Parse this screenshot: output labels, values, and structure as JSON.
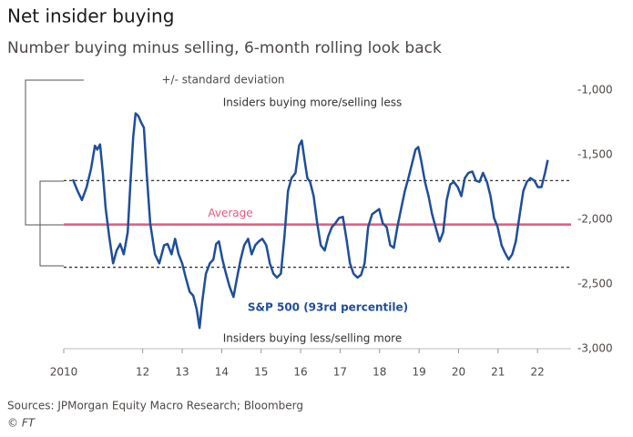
{
  "chart_data": {
    "type": "line",
    "title": "Net insider buying",
    "subtitle": "Number buying minus selling, 6-month rolling look back",
    "source": "Sources: JPMorgan Equity Macro Research; Bloomberg",
    "credit": "© FT",
    "annotations": [
      "+/- standard deviation",
      "Insiders buying more/selling less",
      "S&P 500 (93rd percentile)",
      "Insiders buying less/selling more"
    ],
    "reference_lines": [
      {
        "label": "Average",
        "value": -2040,
        "color": "#e5597e"
      }
    ],
    "band_lines": [
      -1700,
      -2370
    ],
    "xlim": [
      2010,
      2022.85
    ],
    "xticks": [
      2010,
      {
        "value": 2012,
        "label": "12"
      },
      {
        "value": 2013,
        "label": "13"
      },
      {
        "value": 2014,
        "label": "14"
      },
      {
        "value": 2015,
        "label": "15"
      },
      {
        "value": 2016,
        "label": "16"
      },
      {
        "value": 2017,
        "label": "17"
      },
      {
        "value": 2018,
        "label": "18"
      },
      {
        "value": 2019,
        "label": "19"
      },
      {
        "value": 2020,
        "label": "20"
      },
      {
        "value": 2021,
        "label": "21"
      },
      {
        "value": 2022,
        "label": "22"
      }
    ],
    "ylim": [
      -3000,
      -900
    ],
    "yticks": [
      {
        "value": -1000,
        "label": "-1,000"
      },
      {
        "value": -1500,
        "label": "-1,500"
      },
      {
        "value": -2000,
        "label": "-2,000"
      },
      {
        "value": -2500,
        "label": "-2,500"
      },
      {
        "value": -3000,
        "label": "-3,000"
      }
    ],
    "grid": false,
    "x": [
      2010.23,
      2010.35,
      2010.46,
      2010.58,
      2010.69,
      2010.79,
      2010.85,
      2010.92,
      2010.99,
      2011.06,
      2011.15,
      2011.25,
      2011.34,
      2011.43,
      2011.52,
      2011.62,
      2011.69,
      2011.76,
      2011.82,
      2011.89,
      2011.96,
      2012.03,
      2012.1,
      2012.19,
      2012.31,
      2012.42,
      2012.54,
      2012.63,
      2012.73,
      2012.82,
      2012.91,
      2013.0,
      2013.09,
      2013.19,
      2013.28,
      2013.37,
      2013.44,
      2013.51,
      2013.6,
      2013.7,
      2013.79,
      2013.86,
      2013.93,
      2014.02,
      2014.11,
      2014.2,
      2014.3,
      2014.39,
      2014.48,
      2014.57,
      2014.67,
      2014.76,
      2014.85,
      2014.94,
      2015.03,
      2015.13,
      2015.22,
      2015.31,
      2015.4,
      2015.5,
      2015.59,
      2015.68,
      2015.77,
      2015.87,
      2015.96,
      2016.03,
      2016.1,
      2016.17,
      2016.24,
      2016.33,
      2016.42,
      2016.51,
      2016.61,
      2016.7,
      2016.79,
      2016.88,
      2016.97,
      2017.07,
      2017.16,
      2017.25,
      2017.34,
      2017.44,
      2017.53,
      2017.62,
      2017.71,
      2017.81,
      2017.9,
      2017.99,
      2018.08,
      2018.18,
      2018.27,
      2018.36,
      2018.45,
      2018.55,
      2018.64,
      2018.73,
      2018.82,
      2018.91,
      2018.98,
      2019.05,
      2019.15,
      2019.24,
      2019.33,
      2019.42,
      2019.52,
      2019.61,
      2019.7,
      2019.79,
      2019.88,
      2019.98,
      2020.07,
      2020.16,
      2020.25,
      2020.35,
      2020.44,
      2020.53,
      2020.62,
      2020.72,
      2020.81,
      2020.9,
      2020.99,
      2021.09,
      2021.18,
      2021.27,
      2021.36,
      2021.45,
      2021.55,
      2021.64,
      2021.73,
      2021.82,
      2021.92,
      2022.01,
      2022.1,
      2022.19,
      2022.26
    ],
    "series": [
      {
        "name": "Net insider buying",
        "color": "#1f4e9a",
        "values": [
          -1690,
          -1780,
          -1850,
          -1750,
          -1610,
          -1430,
          -1460,
          -1420,
          -1640,
          -1910,
          -2130,
          -2340,
          -2240,
          -2190,
          -2270,
          -2100,
          -1710,
          -1360,
          -1180,
          -1200,
          -1250,
          -1290,
          -1640,
          -2030,
          -2270,
          -2340,
          -2200,
          -2190,
          -2270,
          -2150,
          -2270,
          -2340,
          -2450,
          -2560,
          -2590,
          -2700,
          -2840,
          -2630,
          -2420,
          -2340,
          -2310,
          -2190,
          -2170,
          -2310,
          -2420,
          -2520,
          -2600,
          -2450,
          -2310,
          -2200,
          -2150,
          -2270,
          -2200,
          -2170,
          -2150,
          -2200,
          -2340,
          -2420,
          -2450,
          -2420,
          -2130,
          -1780,
          -1680,
          -1640,
          -1430,
          -1390,
          -1540,
          -1680,
          -1710,
          -1820,
          -2030,
          -2200,
          -2240,
          -2130,
          -2060,
          -2030,
          -1990,
          -1980,
          -2150,
          -2340,
          -2420,
          -2450,
          -2430,
          -2340,
          -2060,
          -1960,
          -1940,
          -1920,
          -2030,
          -2060,
          -2200,
          -2220,
          -2060,
          -1910,
          -1780,
          -1680,
          -1570,
          -1460,
          -1440,
          -1540,
          -1710,
          -1820,
          -1960,
          -2060,
          -2170,
          -2100,
          -1850,
          -1730,
          -1710,
          -1750,
          -1820,
          -1680,
          -1640,
          -1630,
          -1700,
          -1710,
          -1640,
          -1710,
          -1820,
          -1990,
          -2060,
          -2200,
          -2260,
          -2310,
          -2270,
          -2170,
          -1960,
          -1780,
          -1710,
          -1680,
          -1700,
          -1750,
          -1750,
          -1640,
          -1540
        ]
      }
    ]
  }
}
